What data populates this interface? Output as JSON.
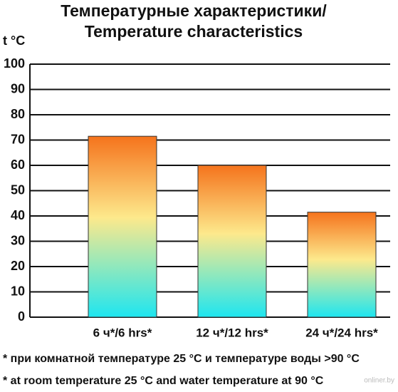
{
  "chart_data": {
    "type": "bar",
    "title": [
      "Температурные характеристики/",
      "Temperature characteristics"
    ],
    "y_label": "t °C",
    "categories": [
      "6 ч*/6 hrs*",
      "12 ч*/12 hrs*",
      "24 ч*/24 hrs*"
    ],
    "values": [
      71.5,
      60,
      41.5
    ],
    "gradient": [
      "#f5731c",
      "#fde98c",
      "#1ee6f0"
    ],
    "ylim": [
      0,
      100
    ],
    "yticks": [
      0,
      10,
      20,
      30,
      40,
      50,
      60,
      70,
      80,
      90,
      100
    ],
    "grid": true,
    "footnotes": [
      "* при комнатной температуре 25 °C и температуре воды >90 °C",
      "* at room temperature 25 °C and water temperature at 90 °C"
    ],
    "watermark": "onliner.by"
  }
}
